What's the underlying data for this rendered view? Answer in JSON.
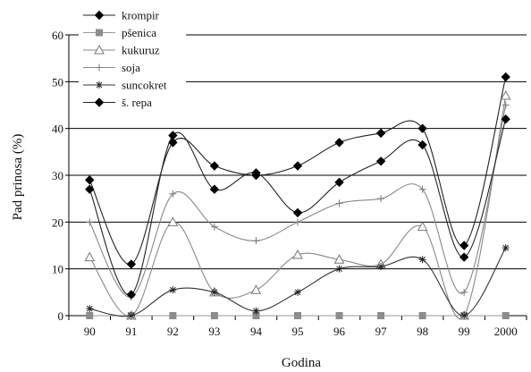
{
  "chart_data": {
    "type": "line",
    "title": "",
    "xlabel": "Godina",
    "ylabel": "Pad prinosa (%)",
    "categories": [
      "90",
      "91",
      "92",
      "93",
      "94",
      "95",
      "96",
      "97",
      "98",
      "99",
      "2000"
    ],
    "yticks": [
      "0",
      "10",
      "20",
      "30",
      "40",
      "50",
      "60"
    ],
    "ylim": [
      0,
      60
    ],
    "grid": true,
    "legend_position": "top-left",
    "series": [
      {
        "name": "krompir",
        "marker": "diamond-filled",
        "color": "#222222",
        "values": [
          29,
          11,
          37,
          32,
          30,
          32,
          37,
          39,
          40,
          15,
          51
        ]
      },
      {
        "name": "pšenica",
        "marker": "square-filled",
        "color": "#999999",
        "values": [
          0,
          0,
          0,
          0,
          0,
          0,
          0,
          0,
          0,
          0,
          0
        ]
      },
      {
        "name": "kukuruz",
        "marker": "triangle-open",
        "color": "#888888",
        "values": [
          12.5,
          0,
          20,
          5,
          5.5,
          13,
          12,
          11,
          19,
          0,
          47
        ]
      },
      {
        "name": "soja",
        "marker": "plus",
        "color": "#888888",
        "values": [
          20,
          4,
          26,
          19,
          16,
          20,
          24,
          25,
          27,
          5,
          45
        ]
      },
      {
        "name": "suncokret",
        "marker": "star",
        "color": "#333333",
        "values": [
          1.5,
          0,
          5.5,
          5,
          1,
          5,
          10,
          10.5,
          12,
          0,
          14.5
        ]
      },
      {
        "name": "š. repa",
        "marker": "diamond-filled",
        "color": "#222222",
        "values": [
          27,
          4.5,
          38.5,
          27,
          30.5,
          22,
          28.5,
          33,
          36.5,
          12.5,
          42
        ]
      }
    ]
  }
}
